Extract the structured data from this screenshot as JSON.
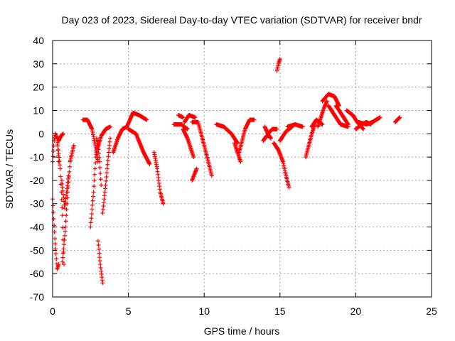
{
  "chart_data": {
    "type": "scatter",
    "title": "Day 023 of 2023, Sidereal Day-to-day VTEC variation (SDTVAR) for receiver bndr",
    "xlabel": "GPS time / hours",
    "ylabel": "SDTVAR / TECUs",
    "xlim": [
      0,
      25
    ],
    "ylim": [
      -70,
      40
    ],
    "xticks": [
      "0",
      "5",
      "10",
      "15",
      "20",
      "25"
    ],
    "yticks": [
      "-70",
      "-60",
      "-50",
      "-40",
      "-30",
      "-20",
      "-10",
      "0",
      "10",
      "20",
      "30",
      "40"
    ],
    "grid": true,
    "marker": "+",
    "series_color": "#ff0000",
    "segments": [
      {
        "t0": 0.0,
        "t1": 0.4,
        "ctrl": [
          [
            0.0,
            -12
          ],
          [
            0.1,
            -3
          ],
          [
            0.2,
            0
          ],
          [
            0.3,
            -2
          ],
          [
            0.4,
            -12
          ]
        ]
      },
      {
        "t0": 0.0,
        "t1": 0.4,
        "ctrl": [
          [
            0.0,
            -28
          ],
          [
            0.15,
            -45
          ],
          [
            0.3,
            -58
          ],
          [
            0.4,
            -56
          ]
        ]
      },
      {
        "t0": 0.3,
        "t1": 0.75,
        "ctrl": [
          [
            0.3,
            -2
          ],
          [
            0.5,
            -15
          ],
          [
            0.65,
            -35
          ],
          [
            0.75,
            -56
          ]
        ]
      },
      {
        "t0": 0.4,
        "t1": 0.7,
        "ctrl": [
          [
            0.4,
            -3
          ],
          [
            0.55,
            -1
          ],
          [
            0.7,
            0
          ]
        ]
      },
      {
        "t0": 0.65,
        "t1": 1.4,
        "ctrl": [
          [
            0.65,
            -55
          ],
          [
            0.85,
            -40
          ],
          [
            1.0,
            -25
          ],
          [
            1.15,
            -12
          ],
          [
            1.4,
            -5
          ]
        ]
      },
      {
        "t0": 0.6,
        "t1": 1.05,
        "ctrl": [
          [
            0.6,
            -20
          ],
          [
            0.8,
            -32
          ],
          [
            1.05,
            -18
          ]
        ]
      },
      {
        "t0": 2.0,
        "t1": 3.0,
        "ctrl": [
          [
            2.0,
            6
          ],
          [
            2.3,
            6
          ],
          [
            2.6,
            2
          ],
          [
            2.85,
            -6
          ],
          [
            3.0,
            -12
          ]
        ]
      },
      {
        "t0": 2.5,
        "t1": 3.0,
        "ctrl": [
          [
            2.5,
            -40
          ],
          [
            2.7,
            -25
          ],
          [
            2.85,
            -10
          ],
          [
            3.0,
            -3
          ]
        ]
      },
      {
        "t0": 2.9,
        "t1": 3.2,
        "ctrl": [
          [
            2.9,
            -2
          ],
          [
            3.0,
            -5
          ],
          [
            3.1,
            -12
          ],
          [
            3.2,
            -22
          ]
        ]
      },
      {
        "t0": 3.0,
        "t1": 3.3,
        "ctrl": [
          [
            3.0,
            -46
          ],
          [
            3.1,
            -53
          ],
          [
            3.2,
            -59
          ],
          [
            3.3,
            -64
          ]
        ]
      },
      {
        "t0": 3.0,
        "t1": 3.8,
        "ctrl": [
          [
            3.0,
            -6
          ],
          [
            3.2,
            -1
          ],
          [
            3.5,
            2
          ],
          [
            3.8,
            3
          ]
        ]
      },
      {
        "t0": 3.3,
        "t1": 3.8,
        "ctrl": [
          [
            3.3,
            -34
          ],
          [
            3.5,
            -22
          ],
          [
            3.7,
            -8
          ],
          [
            3.8,
            -2
          ]
        ]
      },
      {
        "t0": 4.0,
        "t1": 4.9,
        "ctrl": [
          [
            4.0,
            -8
          ],
          [
            4.3,
            -2
          ],
          [
            4.6,
            2
          ],
          [
            4.9,
            3
          ]
        ]
      },
      {
        "t0": 4.9,
        "t1": 6.2,
        "ctrl": [
          [
            4.9,
            3
          ],
          [
            5.3,
            9
          ],
          [
            5.7,
            8
          ],
          [
            6.2,
            6
          ]
        ]
      },
      {
        "t0": 5.0,
        "t1": 6.4,
        "ctrl": [
          [
            5.0,
            2
          ],
          [
            5.5,
            0
          ],
          [
            6.0,
            -8
          ],
          [
            6.4,
            -13
          ]
        ]
      },
      {
        "t0": 6.7,
        "t1": 7.3,
        "ctrl": [
          [
            6.7,
            -8
          ],
          [
            6.9,
            -15
          ],
          [
            7.1,
            -25
          ],
          [
            7.3,
            -30
          ]
        ]
      },
      {
        "t0": 8.0,
        "t1": 8.9,
        "ctrl": [
          [
            8.0,
            4
          ],
          [
            8.5,
            4
          ],
          [
            8.9,
            2
          ]
        ]
      },
      {
        "t0": 8.3,
        "t1": 8.6,
        "ctrl": [
          [
            8.3,
            8
          ],
          [
            8.6,
            7
          ]
        ]
      },
      {
        "t0": 8.6,
        "t1": 9.3,
        "ctrl": [
          [
            8.6,
            2
          ],
          [
            8.9,
            -2
          ],
          [
            9.1,
            -6
          ],
          [
            9.3,
            -10
          ]
        ]
      },
      {
        "t0": 8.7,
        "t1": 9.4,
        "ctrl": [
          [
            8.7,
            5
          ],
          [
            9.0,
            8
          ],
          [
            9.4,
            7
          ]
        ]
      },
      {
        "t0": 9.2,
        "t1": 9.5,
        "ctrl": [
          [
            9.2,
            -20
          ],
          [
            9.5,
            -15
          ]
        ]
      },
      {
        "t0": 9.2,
        "t1": 10.5,
        "ctrl": [
          [
            9.2,
            5
          ],
          [
            9.6,
            5
          ],
          [
            10.0,
            -5
          ],
          [
            10.5,
            -18
          ]
        ]
      },
      {
        "t0": 10.8,
        "t1": 12.2,
        "ctrl": [
          [
            10.8,
            4
          ],
          [
            11.3,
            3
          ],
          [
            11.8,
            0
          ],
          [
            12.2,
            -4
          ]
        ]
      },
      {
        "t0": 12.0,
        "t1": 12.4,
        "ctrl": [
          [
            12.0,
            -4
          ],
          [
            12.2,
            -8
          ],
          [
            12.4,
            -12
          ]
        ]
      },
      {
        "t0": 12.3,
        "t1": 13.3,
        "ctrl": [
          [
            12.3,
            -8
          ],
          [
            12.7,
            2
          ],
          [
            13.0,
            6
          ],
          [
            13.3,
            6
          ]
        ]
      },
      {
        "t0": 13.9,
        "t1": 14.3,
        "ctrl": [
          [
            13.9,
            -3
          ],
          [
            14.1,
            -1
          ],
          [
            14.3,
            -1
          ]
        ]
      },
      {
        "t0": 14.0,
        "t1": 14.4,
        "ctrl": [
          [
            14.0,
            3
          ],
          [
            14.2,
            0
          ],
          [
            14.4,
            -2
          ]
        ]
      },
      {
        "t0": 14.2,
        "t1": 14.8,
        "ctrl": [
          [
            14.2,
            0
          ],
          [
            14.5,
            2
          ],
          [
            14.8,
            2
          ]
        ]
      },
      {
        "t0": 14.8,
        "t1": 15.0,
        "ctrl": [
          [
            14.8,
            27
          ],
          [
            14.9,
            30
          ],
          [
            15.0,
            32
          ]
        ]
      },
      {
        "t0": 14.6,
        "t1": 15.6,
        "ctrl": [
          [
            14.6,
            -4
          ],
          [
            14.9,
            -7
          ],
          [
            15.2,
            -12
          ],
          [
            15.4,
            -18
          ],
          [
            15.6,
            -23
          ]
        ]
      },
      {
        "t0": 15.0,
        "t1": 15.8,
        "ctrl": [
          [
            15.0,
            -3
          ],
          [
            15.4,
            1
          ],
          [
            15.8,
            3
          ]
        ]
      },
      {
        "t0": 15.5,
        "t1": 16.5,
        "ctrl": [
          [
            15.5,
            3
          ],
          [
            16.0,
            4
          ],
          [
            16.5,
            3
          ]
        ]
      },
      {
        "t0": 16.7,
        "t1": 17.3,
        "ctrl": [
          [
            16.7,
            -10
          ],
          [
            16.9,
            -5
          ],
          [
            17.1,
            0
          ],
          [
            17.3,
            4
          ]
        ]
      },
      {
        "t0": 17.1,
        "t1": 17.8,
        "ctrl": [
          [
            17.1,
            3
          ],
          [
            17.4,
            6
          ],
          [
            17.8,
            4
          ]
        ]
      },
      {
        "t0": 17.5,
        "t1": 18.1,
        "ctrl": [
          [
            17.5,
            3
          ],
          [
            17.7,
            7
          ],
          [
            17.9,
            11
          ],
          [
            18.1,
            14
          ]
        ]
      },
      {
        "t0": 17.8,
        "t1": 18.9,
        "ctrl": [
          [
            17.8,
            14
          ],
          [
            18.2,
            17
          ],
          [
            18.6,
            16
          ],
          [
            18.9,
            12
          ]
        ]
      },
      {
        "t0": 18.2,
        "t1": 19.5,
        "ctrl": [
          [
            18.2,
            12
          ],
          [
            18.6,
            8
          ],
          [
            19.0,
            4
          ],
          [
            19.5,
            3
          ]
        ]
      },
      {
        "t0": 18.7,
        "t1": 19.5,
        "ctrl": [
          [
            18.7,
            12
          ],
          [
            19.1,
            8
          ],
          [
            19.5,
            4
          ]
        ]
      },
      {
        "t0": 19.4,
        "t1": 20.5,
        "ctrl": [
          [
            19.4,
            10
          ],
          [
            19.8,
            8
          ],
          [
            20.1,
            5
          ],
          [
            20.5,
            2
          ]
        ]
      },
      {
        "t0": 20.0,
        "t1": 21.0,
        "ctrl": [
          [
            20.0,
            2
          ],
          [
            20.4,
            4
          ],
          [
            20.7,
            5
          ],
          [
            21.0,
            4
          ]
        ]
      },
      {
        "t0": 20.2,
        "t1": 21.6,
        "ctrl": [
          [
            20.2,
            5
          ],
          [
            20.7,
            4
          ],
          [
            21.1,
            5
          ],
          [
            21.6,
            7
          ]
        ]
      },
      {
        "t0": 22.6,
        "t1": 22.9,
        "ctrl": [
          [
            22.6,
            5
          ],
          [
            22.9,
            7
          ]
        ]
      }
    ]
  }
}
